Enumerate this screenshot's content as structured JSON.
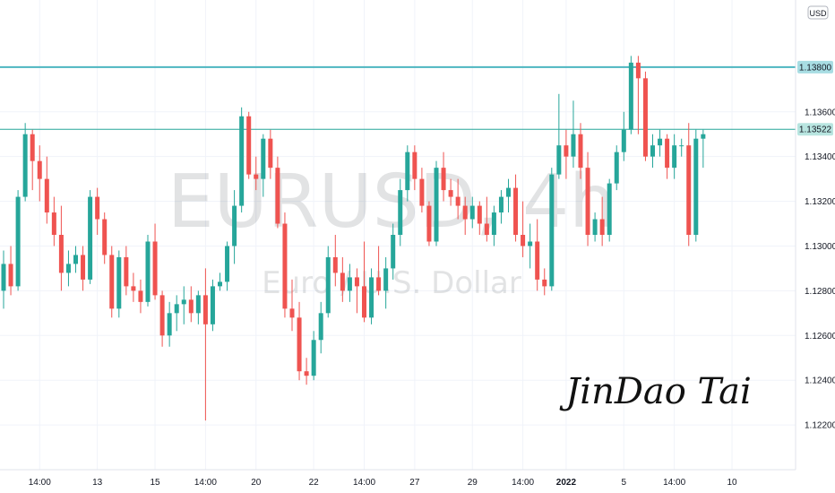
{
  "chart_data": {
    "type": "candlestick",
    "watermark_symbol": "EURUSD, 4h",
    "watermark_description": "Euro / U.S. Dollar",
    "signature": "JinDao Tai",
    "currency": "USD",
    "ylim": [
      1.12,
      1.141
    ],
    "y_ticks": [
      "1.12200",
      "1.12400",
      "1.12600",
      "1.12800",
      "1.13000",
      "1.13200",
      "1.13400",
      "1.13600"
    ],
    "x_ticks": [
      {
        "label": "14:00",
        "index": 5
      },
      {
        "label": "13",
        "index": 13
      },
      {
        "label": "15",
        "index": 21
      },
      {
        "label": "14:00",
        "index": 28
      },
      {
        "label": "20",
        "index": 35
      },
      {
        "label": "22",
        "index": 43
      },
      {
        "label": "14:00",
        "index": 50
      },
      {
        "label": "27",
        "index": 57
      },
      {
        "label": "29",
        "index": 65
      },
      {
        "label": "14:00",
        "index": 72
      },
      {
        "label": "2022",
        "index": 78
      },
      {
        "label": "5",
        "index": 86
      },
      {
        "label": "14:00",
        "index": 93
      },
      {
        "label": "10",
        "index": 101
      }
    ],
    "horizontal_lines": [
      {
        "price": 1.138,
        "label": "1.13800",
        "color": "#4db6c0"
      },
      {
        "price": 1.13522,
        "label": "1.13522",
        "color": "#26a69a"
      }
    ],
    "up_color": "#26a69a",
    "down_color": "#ef5350",
    "candles": [
      [
        1.128,
        1.1298,
        1.1272,
        1.1292
      ],
      [
        1.1292,
        1.13,
        1.1278,
        1.1282
      ],
      [
        1.1282,
        1.1325,
        1.128,
        1.1322
      ],
      [
        1.1322,
        1.1355,
        1.132,
        1.135
      ],
      [
        1.135,
        1.1352,
        1.1325,
        1.1338
      ],
      [
        1.1338,
        1.1345,
        1.132,
        1.133
      ],
      [
        1.133,
        1.134,
        1.131,
        1.1315
      ],
      [
        1.1315,
        1.1322,
        1.13,
        1.1305
      ],
      [
        1.1305,
        1.1318,
        1.128,
        1.1288
      ],
      [
        1.1288,
        1.1298,
        1.1282,
        1.1292
      ],
      [
        1.1292,
        1.13,
        1.1288,
        1.1296
      ],
      [
        1.1296,
        1.13,
        1.128,
        1.1285
      ],
      [
        1.1285,
        1.1325,
        1.1283,
        1.1322
      ],
      [
        1.1322,
        1.1326,
        1.1305,
        1.1312
      ],
      [
        1.1312,
        1.1315,
        1.1292,
        1.1296
      ],
      [
        1.1296,
        1.13,
        1.1268,
        1.1272
      ],
      [
        1.1272,
        1.1298,
        1.1268,
        1.1295
      ],
      [
        1.1295,
        1.13,
        1.1278,
        1.1282
      ],
      [
        1.1282,
        1.1288,
        1.1275,
        1.128
      ],
      [
        1.128,
        1.1285,
        1.127,
        1.1275
      ],
      [
        1.1275,
        1.1305,
        1.1273,
        1.1302
      ],
      [
        1.1302,
        1.131,
        1.1276,
        1.1278
      ],
      [
        1.1278,
        1.128,
        1.1255,
        1.126
      ],
      [
        1.126,
        1.1275,
        1.1255,
        1.127
      ],
      [
        1.127,
        1.1278,
        1.1262,
        1.1274
      ],
      [
        1.1274,
        1.1282,
        1.1265,
        1.1276
      ],
      [
        1.1276,
        1.1282,
        1.1266,
        1.127
      ],
      [
        1.127,
        1.128,
        1.1265,
        1.1278
      ],
      [
        1.1278,
        1.129,
        1.1222,
        1.1265
      ],
      [
        1.1265,
        1.1285,
        1.1262,
        1.1282
      ],
      [
        1.1282,
        1.1288,
        1.128,
        1.1284
      ],
      [
        1.1284,
        1.1302,
        1.128,
        1.13
      ],
      [
        1.13,
        1.1325,
        1.1292,
        1.1318
      ],
      [
        1.1318,
        1.1362,
        1.1315,
        1.1358
      ],
      [
        1.1358,
        1.136,
        1.133,
        1.1332
      ],
      [
        1.1332,
        1.134,
        1.1325,
        1.133
      ],
      [
        1.133,
        1.135,
        1.1322,
        1.1348
      ],
      [
        1.1348,
        1.1352,
        1.133,
        1.1335
      ],
      [
        1.1335,
        1.134,
        1.1308,
        1.131
      ],
      [
        1.131,
        1.1315,
        1.1268,
        1.1272
      ],
      [
        1.1272,
        1.1285,
        1.1262,
        1.1268
      ],
      [
        1.1268,
        1.1275,
        1.124,
        1.1244
      ],
      [
        1.1244,
        1.125,
        1.1238,
        1.1242
      ],
      [
        1.1242,
        1.1262,
        1.124,
        1.1258
      ],
      [
        1.1258,
        1.1275,
        1.1252,
        1.127
      ],
      [
        1.127,
        1.13,
        1.1268,
        1.1295
      ],
      [
        1.1295,
        1.1305,
        1.1282,
        1.1288
      ],
      [
        1.1288,
        1.1295,
        1.1275,
        1.128
      ],
      [
        1.128,
        1.1292,
        1.1275,
        1.1286
      ],
      [
        1.1286,
        1.129,
        1.127,
        1.1282
      ],
      [
        1.1282,
        1.1302,
        1.1266,
        1.1268
      ],
      [
        1.1268,
        1.129,
        1.1265,
        1.1286
      ],
      [
        1.1286,
        1.13,
        1.1278,
        1.128
      ],
      [
        1.128,
        1.1295,
        1.1272,
        1.129
      ],
      [
        1.129,
        1.131,
        1.1285,
        1.1305
      ],
      [
        1.1305,
        1.133,
        1.13,
        1.1325
      ],
      [
        1.1325,
        1.1345,
        1.132,
        1.1342
      ],
      [
        1.1342,
        1.1345,
        1.1325,
        1.133
      ],
      [
        1.133,
        1.1335,
        1.1315,
        1.1318
      ],
      [
        1.1318,
        1.132,
        1.13,
        1.1302
      ],
      [
        1.1302,
        1.1338,
        1.13,
        1.1335
      ],
      [
        1.1335,
        1.1342,
        1.132,
        1.1325
      ],
      [
        1.1325,
        1.133,
        1.1318,
        1.1322
      ],
      [
        1.1322,
        1.133,
        1.1312,
        1.1318
      ],
      [
        1.1318,
        1.1322,
        1.1305,
        1.1312
      ],
      [
        1.1312,
        1.1322,
        1.1308,
        1.1318
      ],
      [
        1.1318,
        1.132,
        1.1305,
        1.131
      ],
      [
        1.131,
        1.1322,
        1.1302,
        1.1305
      ],
      [
        1.1305,
        1.1318,
        1.13,
        1.1315
      ],
      [
        1.1315,
        1.1325,
        1.131,
        1.1322
      ],
      [
        1.1322,
        1.133,
        1.1315,
        1.1326
      ],
      [
        1.1326,
        1.1332,
        1.1302,
        1.1305
      ],
      [
        1.1305,
        1.132,
        1.1295,
        1.13
      ],
      [
        1.13,
        1.131,
        1.129,
        1.1302
      ],
      [
        1.1302,
        1.1312,
        1.128,
        1.1285
      ],
      [
        1.1285,
        1.129,
        1.1278,
        1.1282
      ],
      [
        1.1282,
        1.1335,
        1.128,
        1.1332
      ],
      [
        1.1332,
        1.1368,
        1.133,
        1.1345
      ],
      [
        1.1345,
        1.1352,
        1.133,
        1.134
      ],
      [
        1.134,
        1.1365,
        1.1335,
        1.135
      ],
      [
        1.135,
        1.1355,
        1.133,
        1.1335
      ],
      [
        1.1335,
        1.1342,
        1.13,
        1.1305
      ],
      [
        1.1305,
        1.1315,
        1.1302,
        1.1312
      ],
      [
        1.1312,
        1.1322,
        1.13,
        1.1305
      ],
      [
        1.1305,
        1.133,
        1.1302,
        1.1328
      ],
      [
        1.1328,
        1.1345,
        1.1325,
        1.1342
      ],
      [
        1.1342,
        1.136,
        1.1338,
        1.1352
      ],
      [
        1.1352,
        1.1385,
        1.135,
        1.1382
      ],
      [
        1.1382,
        1.1385,
        1.135,
        1.1375
      ],
      [
        1.1375,
        1.1378,
        1.1338,
        1.134
      ],
      [
        1.134,
        1.135,
        1.1335,
        1.1345
      ],
      [
        1.1345,
        1.1352,
        1.134,
        1.1348
      ],
      [
        1.1348,
        1.135,
        1.133,
        1.1335
      ],
      [
        1.1335,
        1.135,
        1.133,
        1.1345
      ],
      [
        1.1345,
        1.1348,
        1.134,
        1.1345
      ],
      [
        1.1345,
        1.1355,
        1.13,
        1.1305
      ],
      [
        1.1305,
        1.1352,
        1.1302,
        1.1348
      ],
      [
        1.1348,
        1.1352,
        1.1335,
        1.135
      ]
    ]
  }
}
